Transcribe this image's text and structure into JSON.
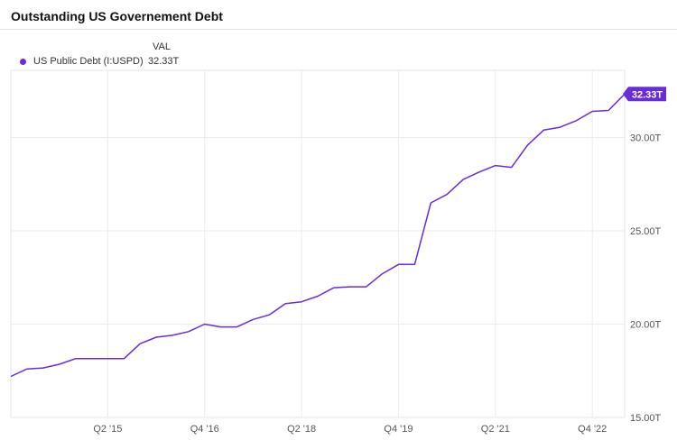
{
  "chart_data": {
    "type": "line",
    "title": "Outstanding US Governement Debt",
    "legend_header": "VAL",
    "series": [
      {
        "name": "US Public Debt (I:USPD)",
        "color": "#6a2bd9",
        "latest_label": "32.33T",
        "x": [
          2013.75,
          2014.0,
          2014.25,
          2014.5,
          2014.75,
          2015.0,
          2015.25,
          2015.5,
          2015.75,
          2016.0,
          2016.25,
          2016.5,
          2016.75,
          2017.0,
          2017.25,
          2017.5,
          2017.75,
          2018.0,
          2018.25,
          2018.5,
          2018.75,
          2019.0,
          2019.25,
          2019.5,
          2019.75,
          2020.0,
          2020.25,
          2020.5,
          2020.75,
          2021.0,
          2021.25,
          2021.5,
          2021.75,
          2022.0,
          2022.25,
          2022.5,
          2022.75,
          2023.0,
          2023.25
        ],
        "values": [
          17.2,
          17.6,
          17.65,
          17.85,
          18.15,
          18.15,
          18.15,
          18.15,
          18.95,
          19.3,
          19.4,
          19.6,
          20.0,
          19.85,
          19.85,
          20.25,
          20.5,
          21.1,
          21.2,
          21.5,
          21.95,
          22.0,
          22.0,
          22.7,
          23.2,
          23.2,
          26.5,
          26.95,
          27.75,
          28.15,
          28.5,
          28.4,
          29.6,
          30.4,
          30.55,
          30.9,
          31.4,
          31.45,
          32.33
        ]
      }
    ],
    "xticks": [
      {
        "pos": 2015.25,
        "label": "Q2 '15"
      },
      {
        "pos": 2016.75,
        "label": "Q4 '16"
      },
      {
        "pos": 2018.25,
        "label": "Q2 '18"
      },
      {
        "pos": 2019.75,
        "label": "Q4 '19"
      },
      {
        "pos": 2021.25,
        "label": "Q2 '21"
      },
      {
        "pos": 2022.75,
        "label": "Q4 '22"
      }
    ],
    "yticks": [
      {
        "value": 15,
        "label": "15.00T"
      },
      {
        "value": 20,
        "label": "20.00T"
      },
      {
        "value": 25,
        "label": "25.00T"
      },
      {
        "value": 30,
        "label": "30.00T"
      }
    ],
    "xlim": [
      2013.75,
      2023.25
    ],
    "ylim": [
      15,
      33.6
    ],
    "grid": true,
    "legend_position": "top-left"
  }
}
